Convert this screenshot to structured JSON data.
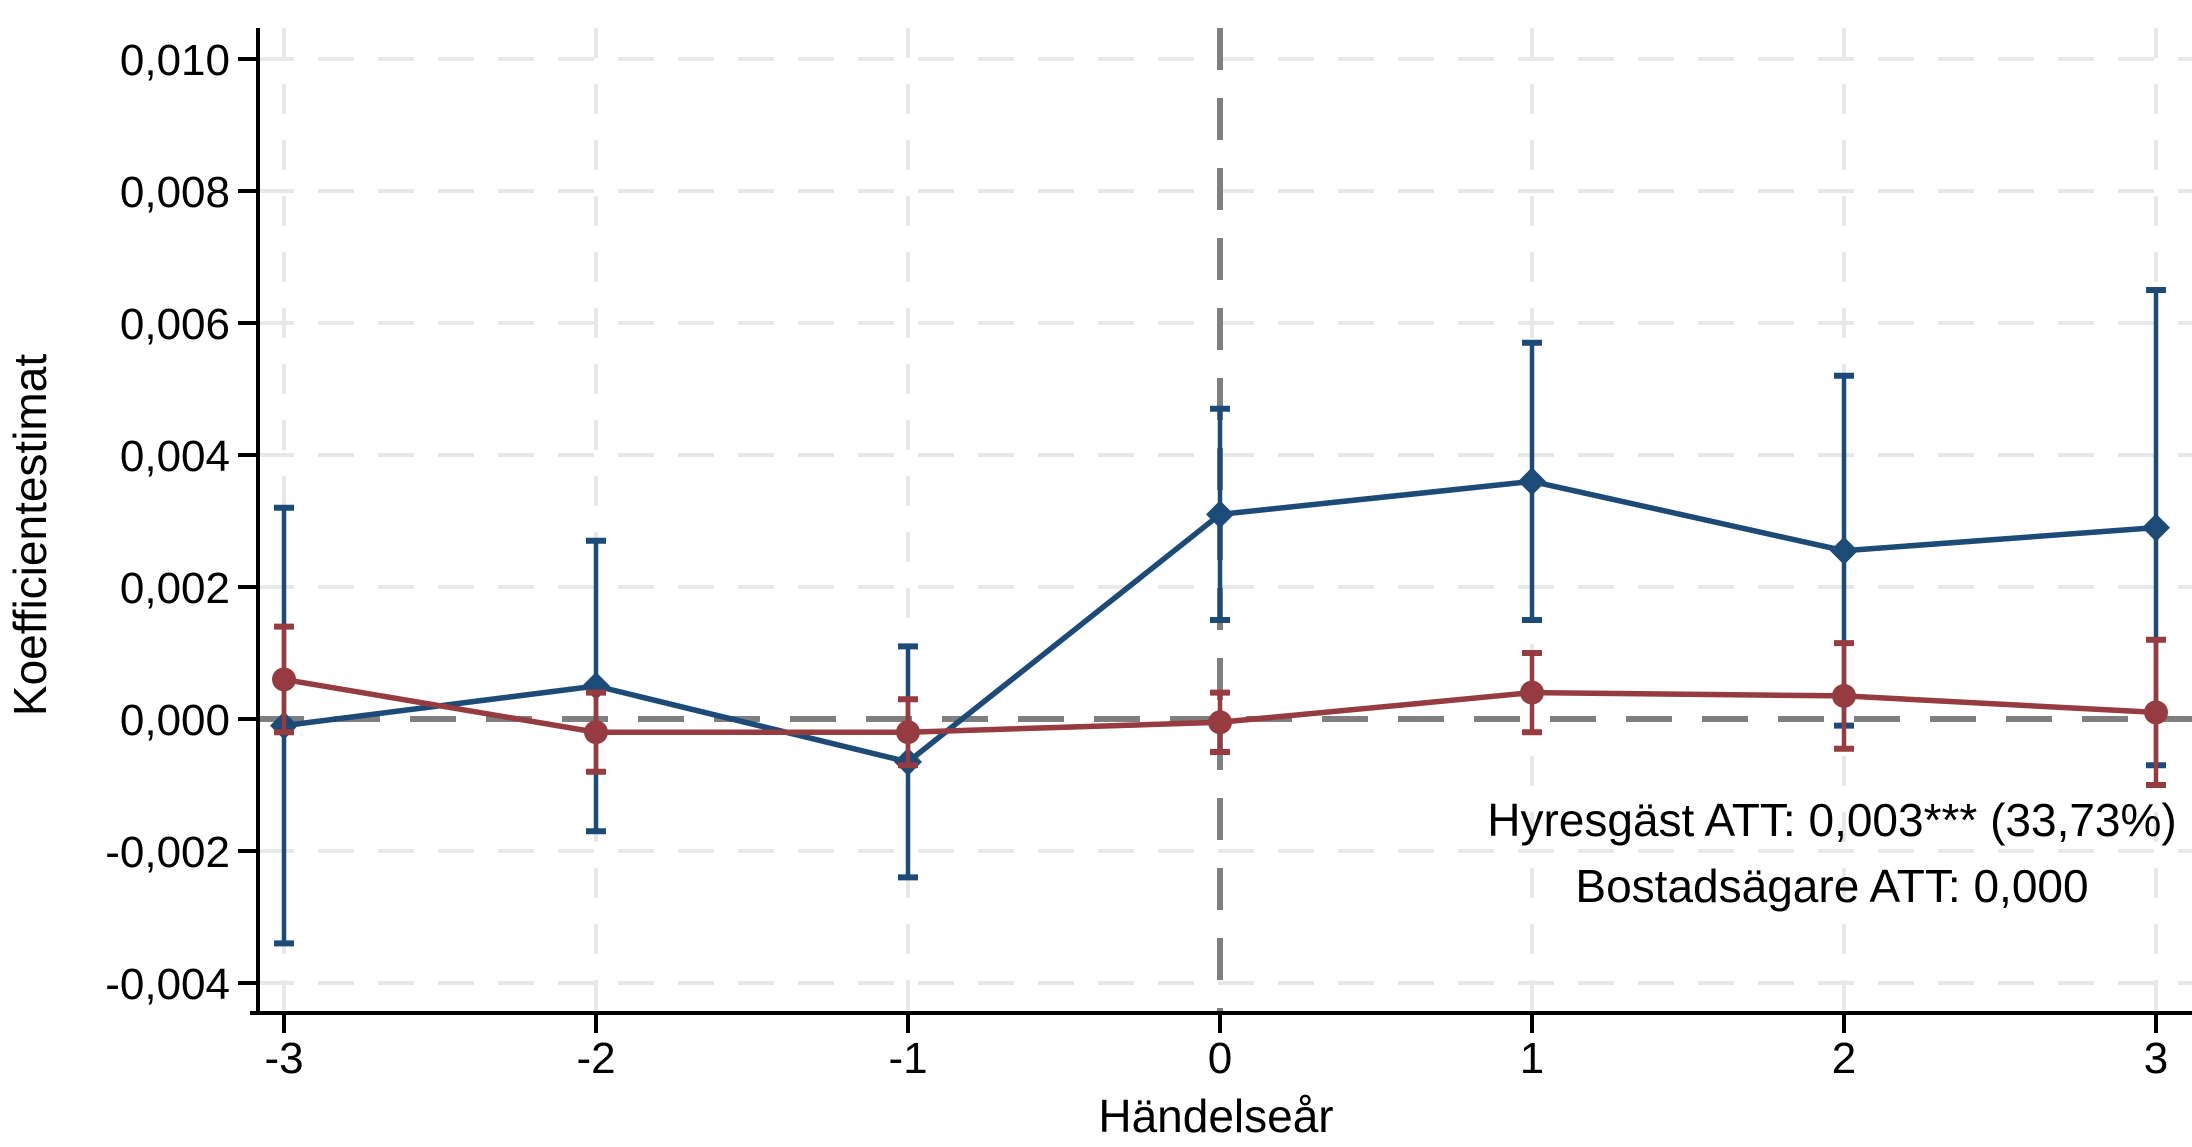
{
  "figure": {
    "background": "#ffffff",
    "text_color": "#000000"
  },
  "chart_data": {
    "type": "line",
    "subtype": "event-study coefficient plot with 95% confidence error bars",
    "title": "",
    "xlabel": "Händelseår",
    "ylabel": "Koefficientestimat",
    "x": [
      -3,
      -2,
      -1,
      0,
      1,
      2,
      3
    ],
    "x_tick_labels": [
      "-3",
      "-2",
      "-1",
      "0",
      "1",
      "2",
      "3"
    ],
    "y_ticks": [
      0.01,
      0.008,
      0.006,
      0.004,
      0.002,
      0.0,
      -0.002,
      -0.004
    ],
    "y_tick_labels": [
      "0,010",
      "0,008",
      "0,006",
      "0,004",
      "0,002",
      "0,000",
      "-0,002",
      "-0,004"
    ],
    "xlim": [
      -3.25,
      3.12
    ],
    "ylim": [
      -0.0045,
      0.0105
    ],
    "grid": true,
    "grid_color": "#e8e8e8",
    "legend": "none",
    "reference_lines": {
      "horizontal_y": 0,
      "vertical_x": 0,
      "color": "#7f7f7f",
      "style": "dashed"
    },
    "series": [
      {
        "name": "Hyresgäst",
        "color": "#1c4b77",
        "marker": "diamond",
        "values": [
          -0.0001,
          0.0005,
          -0.00065,
          0.0031,
          0.0036,
          0.00255,
          0.0029
        ],
        "ci_low": [
          -0.0034,
          -0.0017,
          -0.0024,
          0.0015,
          0.0015,
          -0.0001,
          -0.0007
        ],
        "ci_high": [
          0.0032,
          0.0027,
          0.0011,
          0.0047,
          0.0057,
          0.0052,
          0.0065
        ]
      },
      {
        "name": "Bostadsägare",
        "color": "#963b40",
        "marker": "circle",
        "values": [
          0.0006,
          -0.0002,
          -0.0002,
          -5e-05,
          0.0004,
          0.00035,
          0.0001
        ],
        "ci_low": [
          -0.0002,
          -0.0008,
          -0.0007,
          -0.0005,
          -0.0002,
          -0.00045,
          -0.001
        ],
        "ci_high": [
          0.0014,
          0.0004,
          0.0003,
          0.0004,
          0.001,
          0.00115,
          0.0012
        ]
      }
    ],
    "annotations": [
      {
        "text": "Hyresgäst ATT: 0,003*** (33,73%)"
      },
      {
        "text": "Bostadsägare ATT: 0,000"
      }
    ]
  }
}
